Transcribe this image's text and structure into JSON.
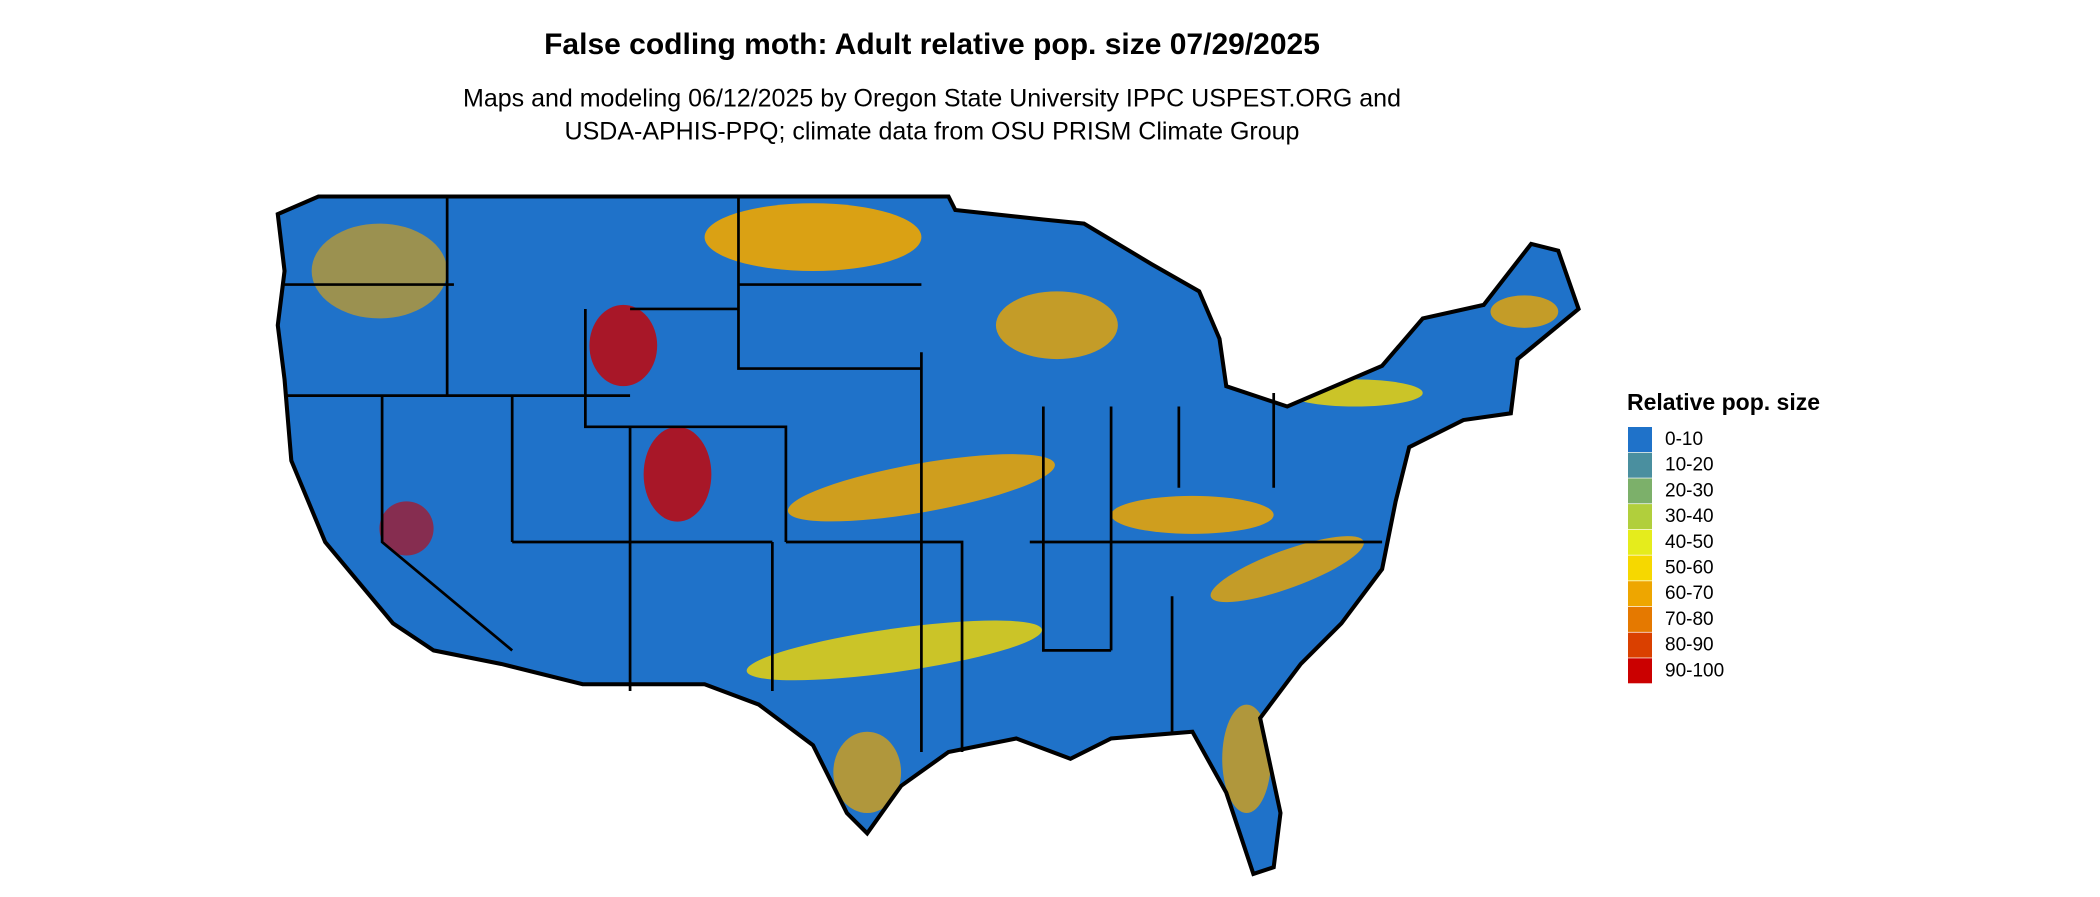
{
  "header": {
    "title": "False codling moth: Adult relative pop. size 07/29/2025",
    "subtitle_lines": [
      "Maps and modeling 06/12/2025 by Oregon State University IPPC USPEST.ORG and",
      "USDA-APHIS-PPQ; climate data from OSU PRISM Climate Group"
    ]
  },
  "legend": {
    "title": "Relative pop. size",
    "items": [
      {
        "label": "0-10",
        "color": "#1f72c9"
      },
      {
        "label": "10-20",
        "color": "#4a8f9f"
      },
      {
        "label": "20-30",
        "color": "#7cb06a"
      },
      {
        "label": "30-40",
        "color": "#b1cf3c"
      },
      {
        "label": "40-50",
        "color": "#e5ec1c"
      },
      {
        "label": "50-60",
        "color": "#f6d800"
      },
      {
        "label": "60-70",
        "color": "#eea600"
      },
      {
        "label": "70-80",
        "color": "#e57900"
      },
      {
        "label": "80-90",
        "color": "#da4000"
      },
      {
        "label": "90-100",
        "color": "#cb0000"
      }
    ]
  }
}
